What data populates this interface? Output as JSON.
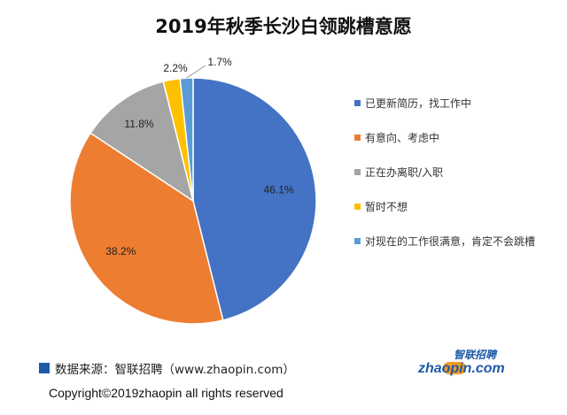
{
  "chart_data": {
    "type": "pie",
    "title": "2019年秋季长沙白领跳槽意愿",
    "slices": [
      {
        "label": "已更新简历，找工作中",
        "value": 46.1,
        "value_label": "46.1%",
        "color": "#4472c4"
      },
      {
        "label": "有意向、考虑中",
        "value": 38.2,
        "value_label": "38.2%",
        "color": "#ed7d31"
      },
      {
        "label": "正在办离职/入职",
        "value": 11.8,
        "value_label": "11.8%",
        "color": "#a5a5a5"
      },
      {
        "label": "暂时不想",
        "value": 2.2,
        "value_label": "2.2%",
        "color": "#ffc000"
      },
      {
        "label": "对现在的工作很满意，肯定不会跳槽",
        "value": 1.7,
        "value_label": "1.7%",
        "color": "#5b9bd5"
      }
    ],
    "legend_position": "right"
  },
  "footer": {
    "source": "数据来源：智联招聘（www.zhaopin.com）",
    "copyright": "Copyright©2019zhaopin all rights reserved"
  },
  "logo": {
    "cn_text": "智联招聘",
    "en_text": "zhaopin.com",
    "colors": {
      "blue": "#1f5aa8",
      "orange": "#f39a1e",
      "yellow": "#f7c81d"
    }
  }
}
